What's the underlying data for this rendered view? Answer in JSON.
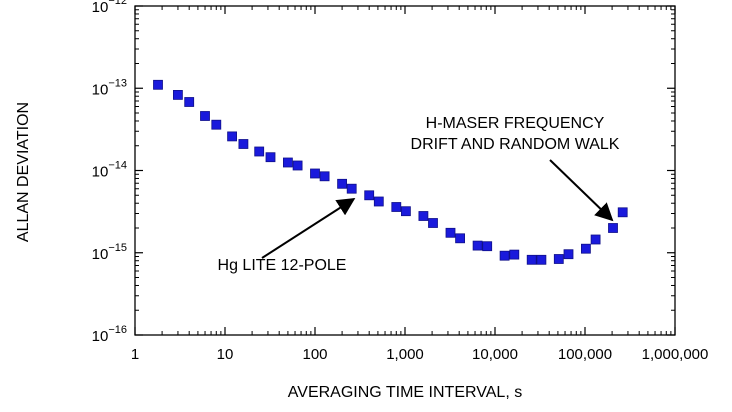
{
  "chart_data": {
    "type": "scatter",
    "xlabel": "AVERAGING TIME INTERVAL, s",
    "ylabel": "ALLAN DEVIATION",
    "x_scale": "log",
    "y_scale": "log",
    "xlim": [
      1,
      1000000
    ],
    "ylim": [
      1e-16,
      1e-12
    ],
    "x_ticks": [
      {
        "value": 1,
        "label": "1"
      },
      {
        "value": 10,
        "label": "10"
      },
      {
        "value": 100,
        "label": "100"
      },
      {
        "value": 1000,
        "label": "1,000"
      },
      {
        "value": 10000,
        "label": "10,000"
      },
      {
        "value": 100000,
        "label": "100,000"
      },
      {
        "value": 1000000,
        "label": "1,000,000"
      }
    ],
    "y_ticks": [
      {
        "value": 1e-12,
        "base": "10",
        "exp": "−12"
      },
      {
        "value": 1e-13,
        "base": "10",
        "exp": "−13"
      },
      {
        "value": 1e-14,
        "base": "10",
        "exp": "−14"
      },
      {
        "value": 1e-15,
        "base": "10",
        "exp": "−15"
      },
      {
        "value": 1e-16,
        "base": "10",
        "exp": "−16"
      }
    ],
    "grid": false,
    "marker_color": "#1a1adc",
    "points": [
      {
        "x": 1.8,
        "y": 1.1e-13
      },
      {
        "x": 3,
        "y": 8.3e-14
      },
      {
        "x": 4,
        "y": 6.8e-14
      },
      {
        "x": 6,
        "y": 4.6e-14
      },
      {
        "x": 8,
        "y": 3.6e-14
      },
      {
        "x": 12,
        "y": 2.6e-14
      },
      {
        "x": 16,
        "y": 2.1e-14
      },
      {
        "x": 24,
        "y": 1.7e-14
      },
      {
        "x": 32,
        "y": 1.45e-14
      },
      {
        "x": 50,
        "y": 1.25e-14
      },
      {
        "x": 64,
        "y": 1.15e-14
      },
      {
        "x": 100,
        "y": 9.2e-15
      },
      {
        "x": 128,
        "y": 8.5e-15
      },
      {
        "x": 200,
        "y": 6.9e-15
      },
      {
        "x": 256,
        "y": 6e-15
      },
      {
        "x": 400,
        "y": 5e-15
      },
      {
        "x": 512,
        "y": 4.2e-15
      },
      {
        "x": 800,
        "y": 3.6e-15
      },
      {
        "x": 1024,
        "y": 3.2e-15
      },
      {
        "x": 1600,
        "y": 2.8e-15
      },
      {
        "x": 2048,
        "y": 2.3e-15
      },
      {
        "x": 3200,
        "y": 1.75e-15
      },
      {
        "x": 4096,
        "y": 1.5e-15
      },
      {
        "x": 6400,
        "y": 1.22e-15
      },
      {
        "x": 8192,
        "y": 1.2e-15
      },
      {
        "x": 12800,
        "y": 9.2e-16
      },
      {
        "x": 16384,
        "y": 9.5e-16
      },
      {
        "x": 25600,
        "y": 8.2e-16
      },
      {
        "x": 32768,
        "y": 8.2e-16
      },
      {
        "x": 51200,
        "y": 8.4e-16
      },
      {
        "x": 65536,
        "y": 9.6e-16
      },
      {
        "x": 102400,
        "y": 1.12e-15
      },
      {
        "x": 131072,
        "y": 1.45e-15
      },
      {
        "x": 204800,
        "y": 2e-15
      },
      {
        "x": 262144,
        "y": 3.1e-15
      }
    ],
    "annotations": [
      {
        "lines": [
          "Hg LITE 12-POLE"
        ],
        "arrow_to": {
          "x": 270,
          "y": 4.5e-15
        }
      },
      {
        "lines": [
          "H-MASER FREQUENCY",
          "DRIFT AND RANDOM WALK"
        ],
        "arrow_to": {
          "x": 200000,
          "y": 2.5e-15
        }
      }
    ]
  }
}
